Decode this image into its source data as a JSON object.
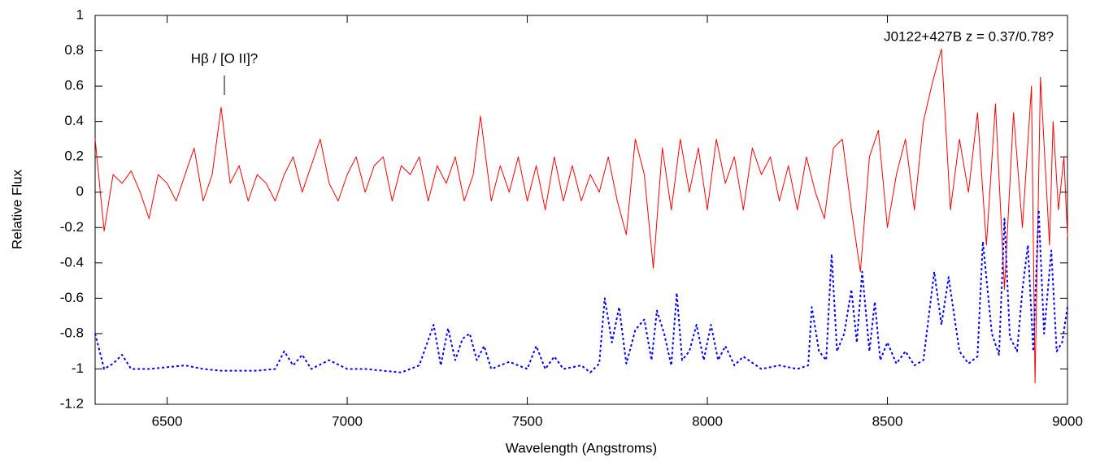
{
  "chart_data": {
    "type": "line",
    "xlabel": "Wavelength (Angstroms)",
    "ylabel": "Relative Flux",
    "annotations": [
      "Hβ / [O II]?",
      "J0122+427B  z = 0.37/0.78?"
    ],
    "xlim": [
      6300,
      9000
    ],
    "xticks": [
      6500,
      7000,
      7500,
      8000,
      8500,
      9000
    ],
    "ylim": [
      -1.2,
      1
    ],
    "yticks": [
      -1.2,
      -1,
      -0.8,
      -0.6,
      -0.4,
      -0.2,
      0,
      0.2,
      0.4,
      0.6,
      0.8,
      1
    ],
    "series": [
      {
        "color": "#ff0000",
        "style": "solid",
        "x": [
          6300,
          6325,
          6350,
          6375,
          6400,
          6425,
          6450,
          6475,
          6500,
          6525,
          6550,
          6575,
          6600,
          6625,
          6650,
          6675,
          6700,
          6725,
          6750,
          6775,
          6800,
          6825,
          6850,
          6875,
          6900,
          6925,
          6950,
          6975,
          7000,
          7025,
          7050,
          7075,
          7100,
          7125,
          7150,
          7175,
          7200,
          7225,
          7250,
          7275,
          7300,
          7325,
          7350,
          7370,
          7400,
          7425,
          7450,
          7475,
          7500,
          7525,
          7550,
          7575,
          7600,
          7625,
          7650,
          7675,
          7700,
          7725,
          7750,
          7775,
          7800,
          7825,
          7850,
          7875,
          7900,
          7925,
          7950,
          7975,
          8000,
          8025,
          8050,
          8075,
          8100,
          8125,
          8150,
          8175,
          8200,
          8225,
          8250,
          8275,
          8300,
          8325,
          8350,
          8375,
          8400,
          8425,
          8450,
          8475,
          8500,
          8525,
          8550,
          8575,
          8600,
          8625,
          8650,
          8675,
          8700,
          8725,
          8750,
          8775,
          8800,
          8825,
          8850,
          8875,
          8900,
          8910,
          8925,
          8950,
          8960,
          8975,
          8990,
          9000
        ],
        "values": [
          0.3,
          -0.22,
          0.1,
          0.05,
          0.12,
          0.0,
          -0.15,
          0.1,
          0.05,
          -0.05,
          0.1,
          0.25,
          -0.05,
          0.1,
          0.48,
          0.05,
          0.15,
          -0.05,
          0.1,
          0.05,
          -0.05,
          0.1,
          0.2,
          0.0,
          0.15,
          0.3,
          0.05,
          -0.05,
          0.1,
          0.2,
          0.0,
          0.15,
          0.2,
          -0.05,
          0.15,
          0.1,
          0.2,
          -0.05,
          0.15,
          0.05,
          0.2,
          -0.05,
          0.1,
          0.43,
          -0.05,
          0.15,
          0.0,
          0.2,
          -0.05,
          0.15,
          -0.1,
          0.2,
          -0.05,
          0.15,
          -0.05,
          0.1,
          0.0,
          0.2,
          -0.05,
          -0.24,
          0.3,
          0.1,
          -0.43,
          0.25,
          -0.1,
          0.3,
          0.0,
          0.25,
          -0.1,
          0.3,
          0.05,
          0.2,
          -0.1,
          0.25,
          0.1,
          0.2,
          -0.05,
          0.15,
          -0.1,
          0.2,
          0.0,
          -0.15,
          0.25,
          0.3,
          -0.1,
          -0.45,
          0.2,
          0.35,
          -0.2,
          0.1,
          0.3,
          -0.1,
          0.4,
          0.62,
          0.81,
          -0.1,
          0.3,
          0.0,
          0.45,
          -0.3,
          0.5,
          -0.55,
          0.45,
          -0.2,
          0.6,
          -1.08,
          0.65,
          -0.3,
          0.4,
          -0.1,
          0.2,
          -0.25
        ]
      },
      {
        "color": "#0000ff",
        "style": "dotted",
        "x": [
          6300,
          6325,
          6350,
          6375,
          6400,
          6450,
          6500,
          6550,
          6600,
          6650,
          6700,
          6750,
          6800,
          6825,
          6850,
          6875,
          6900,
          6950,
          7000,
          7050,
          7100,
          7150,
          7200,
          7240,
          7260,
          7280,
          7300,
          7320,
          7340,
          7360,
          7380,
          7400,
          7450,
          7500,
          7525,
          7550,
          7575,
          7600,
          7650,
          7675,
          7700,
          7715,
          7735,
          7755,
          7775,
          7800,
          7825,
          7845,
          7860,
          7880,
          7900,
          7915,
          7930,
          7950,
          7970,
          7990,
          8010,
          8030,
          8050,
          8075,
          8100,
          8150,
          8200,
          8250,
          8280,
          8290,
          8310,
          8330,
          8345,
          8360,
          8380,
          8400,
          8415,
          8430,
          8450,
          8465,
          8480,
          8500,
          8525,
          8550,
          8575,
          8600,
          8630,
          8650,
          8670,
          8700,
          8725,
          8750,
          8765,
          8790,
          8810,
          8825,
          8840,
          8860,
          8875,
          8890,
          8905,
          8920,
          8935,
          8955,
          8970,
          8985,
          9000
        ],
        "values": [
          -0.8,
          -1.0,
          -0.97,
          -0.92,
          -1.0,
          -1.0,
          -0.99,
          -0.98,
          -1.0,
          -1.01,
          -1.01,
          -1.01,
          -1.0,
          -0.9,
          -0.98,
          -0.92,
          -1.0,
          -0.95,
          -1.0,
          -1.0,
          -1.01,
          -1.02,
          -0.98,
          -0.75,
          -0.98,
          -0.77,
          -0.95,
          -0.83,
          -0.8,
          -0.95,
          -0.87,
          -1.0,
          -0.96,
          -1.0,
          -0.87,
          -1.0,
          -0.93,
          -1.0,
          -0.98,
          -1.02,
          -0.97,
          -0.6,
          -0.85,
          -0.65,
          -0.97,
          -0.78,
          -0.72,
          -0.95,
          -0.67,
          -0.8,
          -0.98,
          -0.57,
          -0.95,
          -0.9,
          -0.75,
          -0.95,
          -0.75,
          -0.95,
          -0.87,
          -0.98,
          -0.93,
          -1.0,
          -0.98,
          -1.0,
          -0.98,
          -0.65,
          -0.9,
          -0.95,
          -0.35,
          -0.9,
          -0.8,
          -0.55,
          -0.85,
          -0.45,
          -0.9,
          -0.62,
          -0.95,
          -0.85,
          -0.97,
          -0.9,
          -0.98,
          -0.95,
          -0.45,
          -0.75,
          -0.48,
          -0.9,
          -0.97,
          -0.93,
          -0.28,
          -0.8,
          -0.92,
          -0.15,
          -0.82,
          -0.9,
          -0.55,
          -0.3,
          -0.9,
          -0.1,
          -0.8,
          -0.33,
          -0.9,
          -0.85,
          -0.65
        ]
      }
    ]
  }
}
